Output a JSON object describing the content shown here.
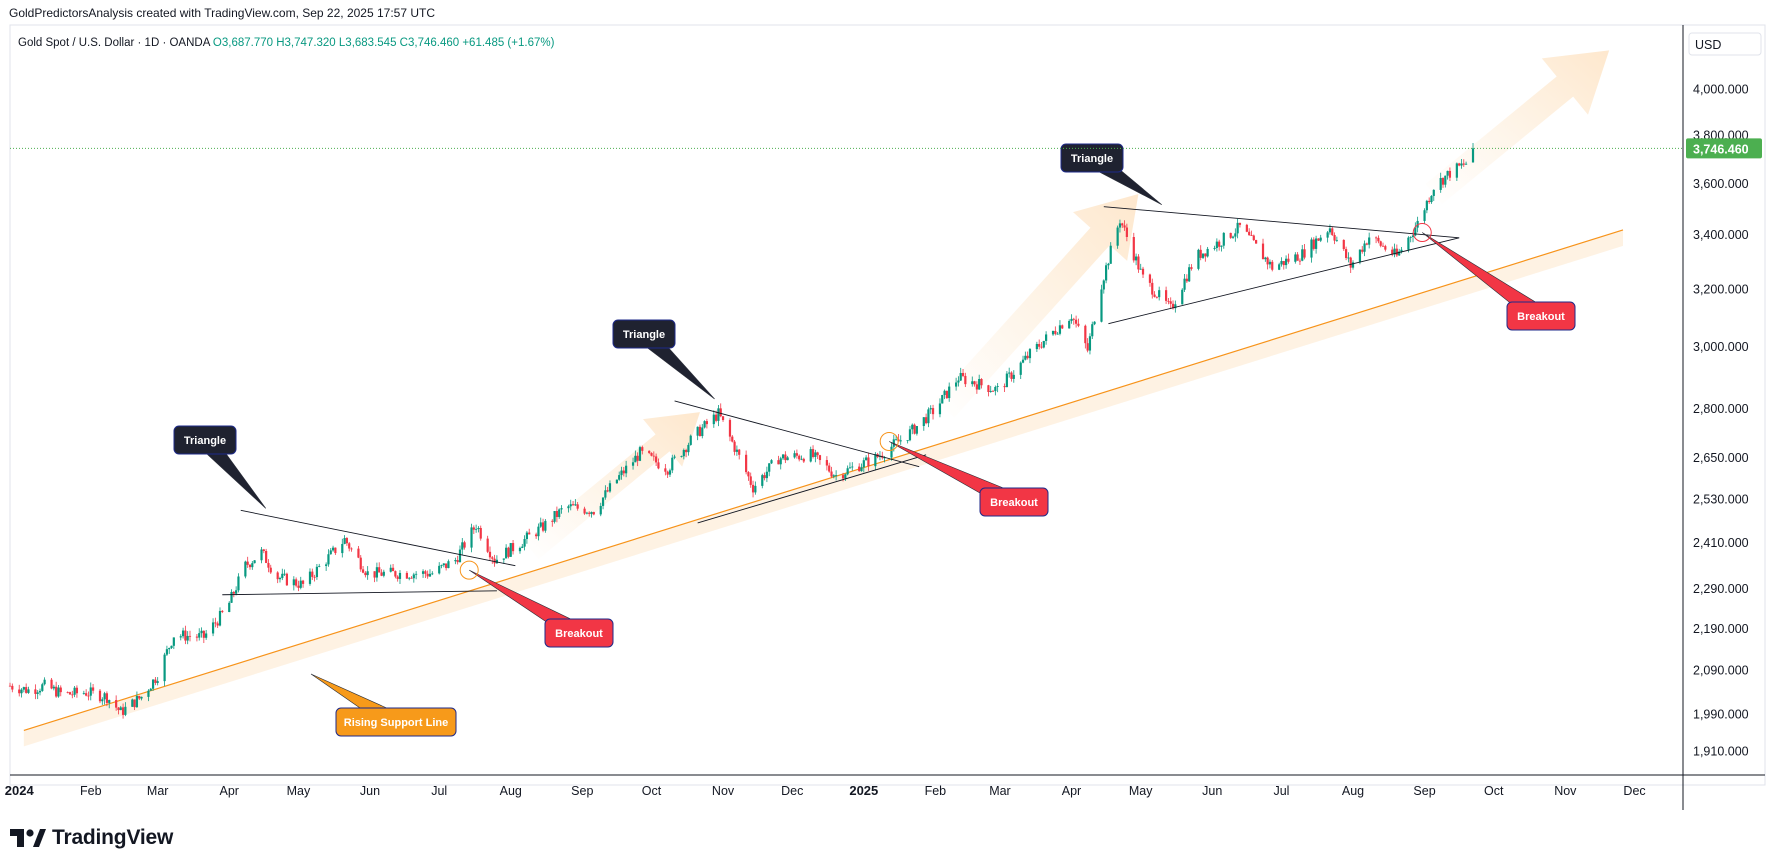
{
  "header": {
    "caption": "GoldPredictorsAnalysis created with TradingView.com, Sep 22, 2025 17:57 UTC"
  },
  "footer": {
    "brand": "TradingView"
  },
  "colors": {
    "up": "#089981",
    "down": "#f23645",
    "support": "#f7931a",
    "triangle_label": "#1f2230",
    "breakout_label": "#f23645",
    "support_label": "#f79a1a",
    "price_badge": "#4caf50"
  },
  "chart_data": {
    "type": "candlestick",
    "symbol": "Gold Spot / U.S. Dollar · 1D · OANDA",
    "ohlc_text": {
      "open": "O3,687.770",
      "high": "H3,747.320",
      "low": "L3,683.545",
      "close": "C3,746.460",
      "change": "+61.485 (+1.67%)"
    },
    "currency": "USD",
    "last_price": 3746.46,
    "last_price_label": "3,746.460",
    "y_scale": "log",
    "ylim": [
      1860,
      4300
    ],
    "y_ticks": [
      {
        "value": 1910,
        "label": "1,910.000"
      },
      {
        "value": 1990,
        "label": "1,990.000"
      },
      {
        "value": 2090,
        "label": "2,090.000"
      },
      {
        "value": 2190,
        "label": "2,190.000"
      },
      {
        "value": 2290,
        "label": "2,290.000"
      },
      {
        "value": 2410,
        "label": "2,410.000"
      },
      {
        "value": 2530,
        "label": "2,530.000"
      },
      {
        "value": 2650,
        "label": "2,650.000"
      },
      {
        "value": 2800,
        "label": "2,800.000"
      },
      {
        "value": 3000,
        "label": "3,000.000"
      },
      {
        "value": 3200,
        "label": "3,200.000"
      },
      {
        "value": 3400,
        "label": "3,400.000"
      },
      {
        "value": 3600,
        "label": "3,600.000"
      },
      {
        "value": 3800,
        "label": "3,800.000"
      },
      {
        "value": 4000,
        "label": "4,000.000"
      }
    ],
    "x_range": [
      "2023-12-28",
      "2025-12-22"
    ],
    "x_ticks": [
      {
        "date": "2024-01-01",
        "label": "2024",
        "year": true
      },
      {
        "date": "2024-02-01",
        "label": "Feb"
      },
      {
        "date": "2024-03-01",
        "label": "Mar"
      },
      {
        "date": "2024-04-01",
        "label": "Apr"
      },
      {
        "date": "2024-05-01",
        "label": "May"
      },
      {
        "date": "2024-06-01",
        "label": "Jun"
      },
      {
        "date": "2024-07-01",
        "label": "Jul"
      },
      {
        "date": "2024-08-01",
        "label": "Aug"
      },
      {
        "date": "2024-09-01",
        "label": "Sep"
      },
      {
        "date": "2024-10-01",
        "label": "Oct"
      },
      {
        "date": "2024-11-01",
        "label": "Nov"
      },
      {
        "date": "2024-12-01",
        "label": "Dec"
      },
      {
        "date": "2025-01-01",
        "label": "2025",
        "year": true
      },
      {
        "date": "2025-02-01",
        "label": "Feb"
      },
      {
        "date": "2025-03-01",
        "label": "Mar"
      },
      {
        "date": "2025-04-01",
        "label": "Apr"
      },
      {
        "date": "2025-05-01",
        "label": "May"
      },
      {
        "date": "2025-06-01",
        "label": "Jun"
      },
      {
        "date": "2025-07-01",
        "label": "Jul"
      },
      {
        "date": "2025-08-01",
        "label": "Aug"
      },
      {
        "date": "2025-09-01",
        "label": "Sep"
      },
      {
        "date": "2025-10-01",
        "label": "Oct"
      },
      {
        "date": "2025-11-01",
        "label": "Nov"
      },
      {
        "date": "2025-12-01",
        "label": "Dec"
      }
    ],
    "price_path": [
      [
        "2023-12-28",
        2055
      ],
      [
        "2024-01-05",
        2045
      ],
      [
        "2024-01-12",
        2055
      ],
      [
        "2024-01-20",
        2035
      ],
      [
        "2024-01-30",
        2040
      ],
      [
        "2024-02-08",
        2030
      ],
      [
        "2024-02-14",
        1995
      ],
      [
        "2024-02-23",
        2030
      ],
      [
        "2024-03-01",
        2080
      ],
      [
        "2024-03-08",
        2175
      ],
      [
        "2024-03-21",
        2170
      ],
      [
        "2024-03-31",
        2240
      ],
      [
        "2024-04-08",
        2350
      ],
      [
        "2024-04-15",
        2385
      ],
      [
        "2024-04-22",
        2320
      ],
      [
        "2024-05-03",
        2300
      ],
      [
        "2024-05-16",
        2385
      ],
      [
        "2024-05-21",
        2420
      ],
      [
        "2024-05-31",
        2330
      ],
      [
        "2024-06-14",
        2330
      ],
      [
        "2024-06-28",
        2330
      ],
      [
        "2024-07-08",
        2365
      ],
      [
        "2024-07-17",
        2460
      ],
      [
        "2024-07-25",
        2365
      ],
      [
        "2024-08-05",
        2410
      ],
      [
        "2024-08-15",
        2455
      ],
      [
        "2024-08-25",
        2510
      ],
      [
        "2024-09-06",
        2500
      ],
      [
        "2024-09-15",
        2580
      ],
      [
        "2024-09-26",
        2665
      ],
      [
        "2024-10-08",
        2620
      ],
      [
        "2024-10-20",
        2720
      ],
      [
        "2024-10-30",
        2785
      ],
      [
        "2024-11-14",
        2565
      ],
      [
        "2024-11-25",
        2650
      ],
      [
        "2024-12-09",
        2660
      ],
      [
        "2024-12-20",
        2600
      ],
      [
        "2025-01-06",
        2650
      ],
      [
        "2025-01-20",
        2720
      ],
      [
        "2025-02-01",
        2800
      ],
      [
        "2025-02-11",
        2900
      ],
      [
        "2025-02-28",
        2860
      ],
      [
        "2025-03-15",
        2985
      ],
      [
        "2025-04-01",
        3110
      ],
      [
        "2025-04-08",
        2990
      ],
      [
        "2025-04-14",
        3220
      ],
      [
        "2025-04-22",
        3460
      ],
      [
        "2025-05-02",
        3240
      ],
      [
        "2025-05-14",
        3130
      ],
      [
        "2025-05-25",
        3320
      ],
      [
        "2025-06-05",
        3380
      ],
      [
        "2025-06-13",
        3430
      ],
      [
        "2025-06-27",
        3280
      ],
      [
        "2025-07-10",
        3330
      ],
      [
        "2025-07-22",
        3430
      ],
      [
        "2025-07-31",
        3285
      ],
      [
        "2025-08-08",
        3395
      ],
      [
        "2025-08-20",
        3320
      ],
      [
        "2025-08-29",
        3445
      ],
      [
        "2025-09-05",
        3590
      ],
      [
        "2025-09-12",
        3645
      ],
      [
        "2025-09-19",
        3685
      ],
      [
        "2025-09-22",
        3746
      ]
    ],
    "annotations": {
      "support_line": {
        "label": "Rising Support Line",
        "from": [
          "2024-01-03",
          1955
        ],
        "to": [
          "2025-11-26",
          3420
        ]
      },
      "triangles": [
        {
          "label": "Triangle",
          "upper": [
            [
              "2024-04-06",
              2500
            ],
            [
              "2024-08-03",
              2350
            ]
          ],
          "lower": [
            [
              "2024-03-29",
              2275
            ],
            [
              "2024-07-26",
              2285
            ]
          ]
        },
        {
          "label": "Triangle",
          "upper": [
            [
              "2024-10-11",
              2825
            ],
            [
              "2025-01-25",
              2625
            ]
          ],
          "lower": [
            [
              "2024-10-21",
              2465
            ],
            [
              "2025-01-28",
              2660
            ]
          ]
        },
        {
          "label": "Triangle",
          "upper": [
            [
              "2025-04-15",
              3510
            ],
            [
              "2025-09-16",
              3390
            ]
          ],
          "lower": [
            [
              "2025-04-17",
              3080
            ],
            [
              "2025-09-16",
              3390
            ]
          ]
        }
      ],
      "breakouts": [
        {
          "label": "Breakout",
          "at": [
            "2024-07-14",
            2370
          ]
        },
        {
          "label": "Breakout",
          "at": [
            "2025-01-12",
            2700
          ]
        },
        {
          "label": "Breakout",
          "at": [
            "2025-08-31",
            3410
          ]
        }
      ]
    }
  }
}
